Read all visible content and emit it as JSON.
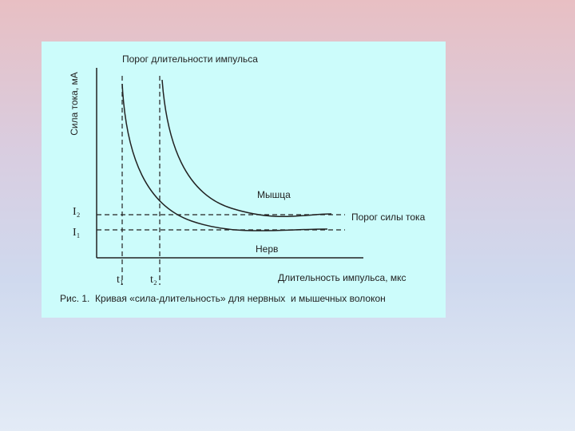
{
  "diagram": {
    "y_axis_label": "Сила тока, мА",
    "pulse_threshold_label": "Порог длительности импульса",
    "muscle_label": "Мышца",
    "current_threshold_label": "Порог силы тока",
    "nerve_label": "Нерв",
    "i2_label": "I₂",
    "i1_label": "I₁",
    "t1_label": "t₁",
    "t2_label": "t₂",
    "x_axis_label": "Длительность импульса, мкс",
    "caption": "Рис. 1.  Кривая «сила-длительность» для нервных  и мышечных волокон"
  }
}
